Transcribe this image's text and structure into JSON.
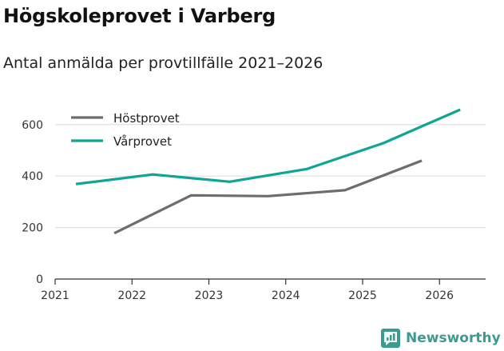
{
  "header": {
    "title": "Högskoleprovet i Varberg",
    "subtitle": "Antal anmälda per provtillfälle 2021–2026"
  },
  "branding": {
    "name": "Newsworthy",
    "color": "#3d9a8e"
  },
  "colors": {
    "host": "#6d6c72",
    "var": "#0fa594",
    "grid": "#e0e0e0",
    "axis": "#333333"
  },
  "chart_data": {
    "type": "line",
    "title": "Antal anmälda per provtillfälle 2021–2026",
    "xlabel": "",
    "ylabel": "",
    "ylim": [
      0,
      680
    ],
    "xlim": [
      2021,
      2026.6
    ],
    "y_ticks": [
      0,
      200,
      400,
      600
    ],
    "x_ticks": [
      2021,
      2022,
      2023,
      2024,
      2025,
      2026
    ],
    "grid": true,
    "legend_position": "top-left",
    "series": [
      {
        "name": "Höstprovet",
        "color": "#6d6c72",
        "x": [
          2021.77,
          2022.77,
          2023.77,
          2024.77,
          2025.77
        ],
        "values": [
          178,
          325,
          322,
          345,
          460
        ]
      },
      {
        "name": "Vårprovet",
        "color": "#0fa594",
        "x": [
          2021.27,
          2022.27,
          2023.27,
          2024.27,
          2025.27,
          2026.27
        ],
        "values": [
          369,
          406,
          378,
          427,
          528,
          658
        ]
      }
    ]
  }
}
